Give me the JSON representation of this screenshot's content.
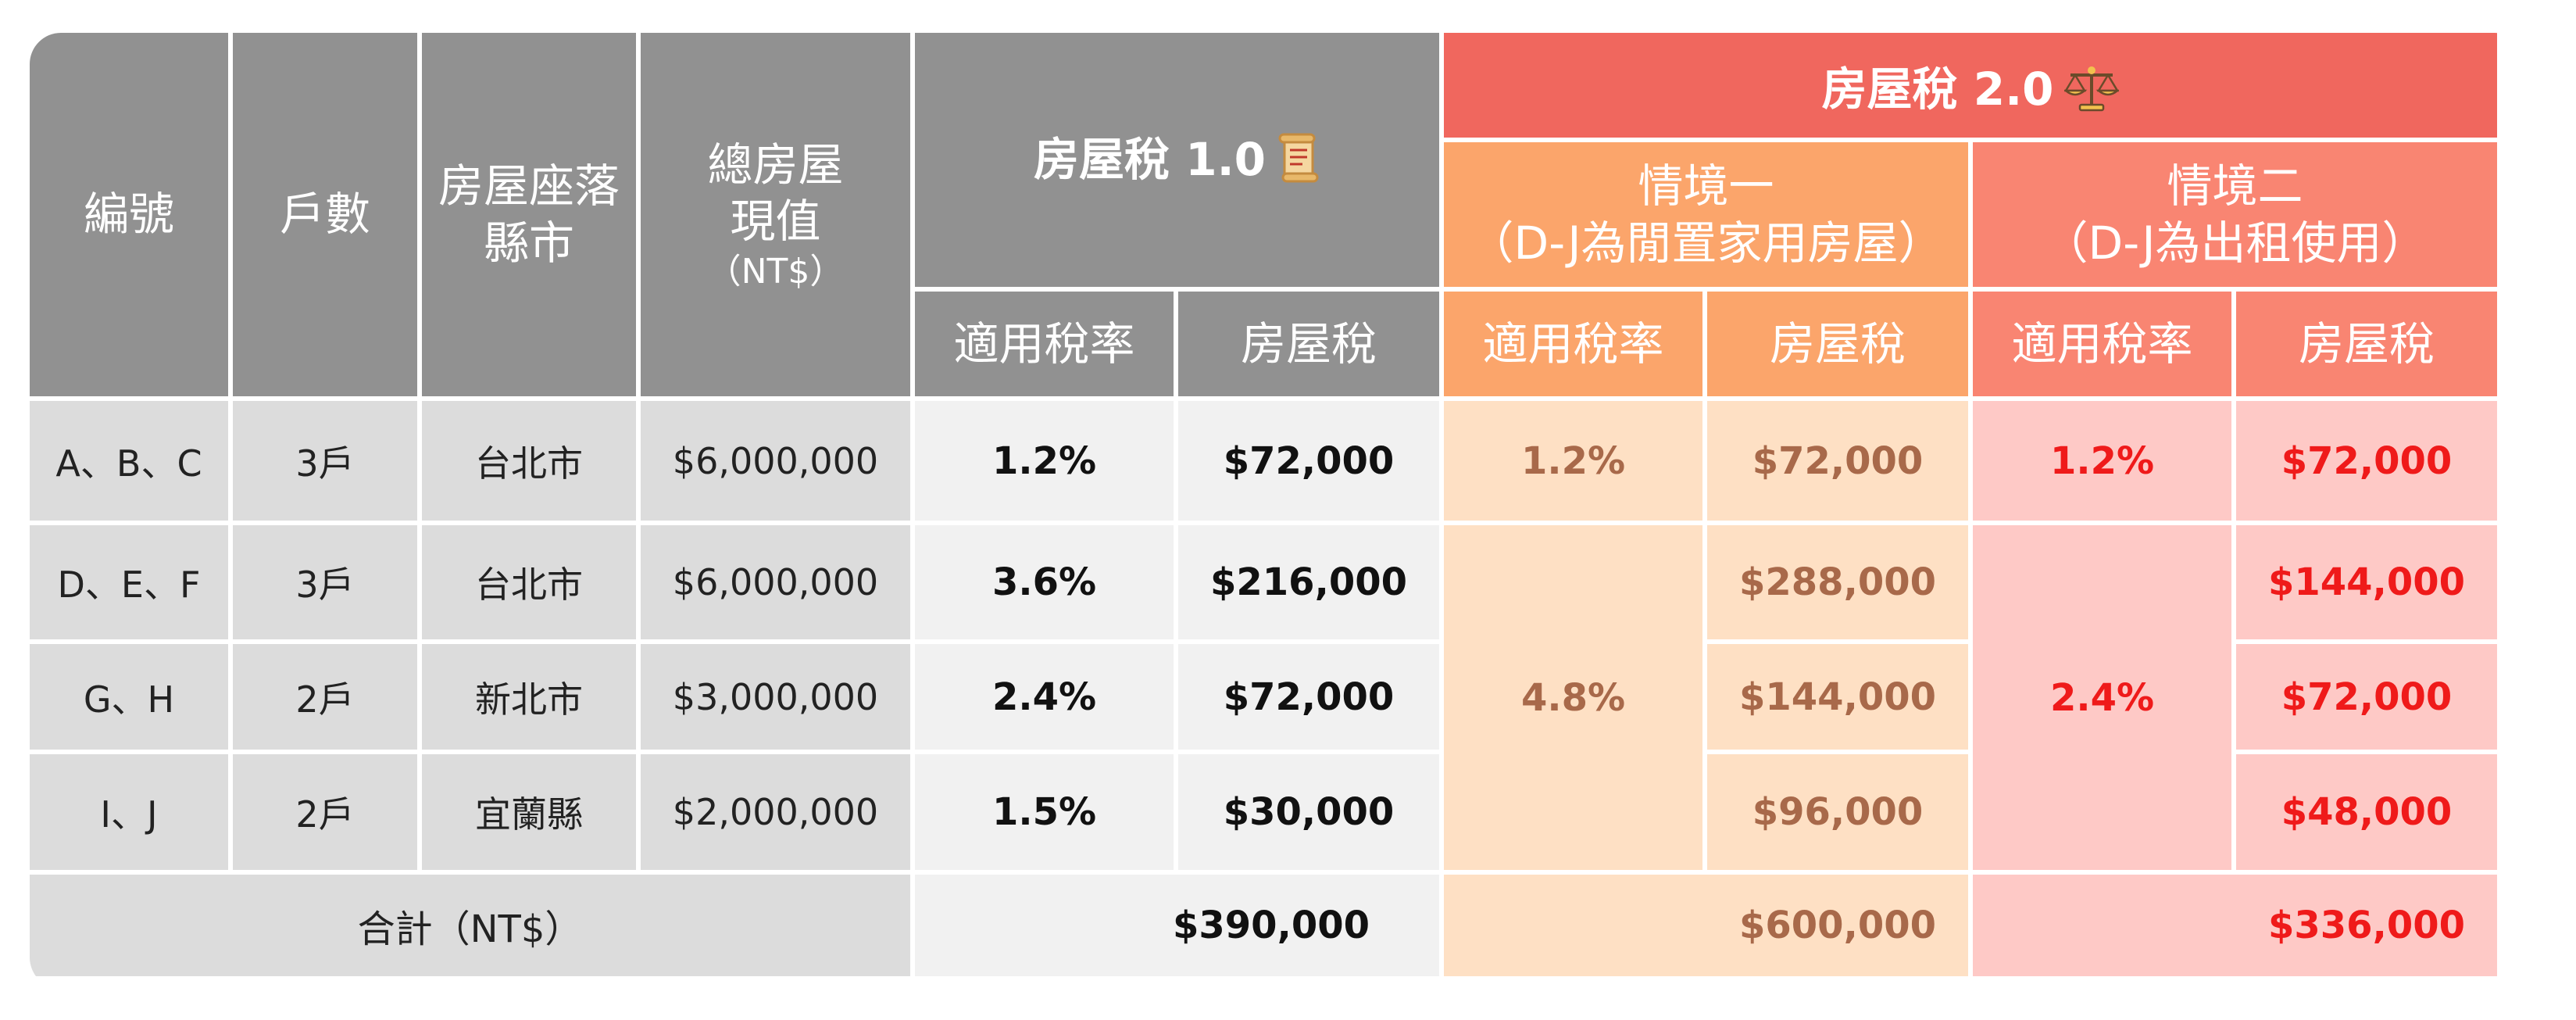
{
  "header": {
    "id": "編號",
    "units": "戶數",
    "location_line1": "房屋座落",
    "location_line2": "縣市",
    "value_line1": "總房屋",
    "value_line2": "現值",
    "value_unit": "（NT$）",
    "tax10_title": "房屋稅 1.0",
    "tax10_icon": "scroll-icon",
    "tax20_title": "房屋稅 2.0",
    "tax20_icon": "scales-icon",
    "scenario1_line1": "情境一",
    "scenario1_line2": "（D-J為閒置家用房屋）",
    "scenario2_line1": "情境二",
    "scenario2_line2": "（D-J為出租使用）",
    "rate_label": "適用稅率",
    "tax_label": "房屋稅"
  },
  "rows": [
    {
      "id": "A、B、C",
      "units": "3戶",
      "city": "台北市",
      "value": "$6,000,000",
      "rate10": "1.2%",
      "tax10": "$72,000",
      "tax_s1": "$72,000",
      "tax_s2": "$72,000"
    },
    {
      "id": "D、E、F",
      "units": "3戶",
      "city": "台北市",
      "value": "$6,000,000",
      "rate10": "3.6%",
      "tax10": "$216,000",
      "tax_s1": "$288,000",
      "tax_s2": "$144,000"
    },
    {
      "id": "G、H",
      "units": "2戶",
      "city": "新北市",
      "value": "$3,000,000",
      "rate10": "2.4%",
      "tax10": "$72,000",
      "tax_s1": "$144,000",
      "tax_s2": "$72,000"
    },
    {
      "id": "I、J",
      "units": "2戶",
      "city": "宜蘭縣",
      "value": "$2,000,000",
      "rate10": "1.5%",
      "tax10": "$30,000",
      "tax_s1": "$96,000",
      "tax_s2": "$48,000"
    }
  ],
  "scenario1_rates": {
    "first": "1.2%",
    "rest": "4.8%"
  },
  "scenario2_rates": {
    "first": "1.2%",
    "rest": "2.4%"
  },
  "totals": {
    "label": "合計（NT$）",
    "tax10": "$390,000",
    "tax_s1": "$600,000",
    "tax_s2": "$336,000"
  },
  "colors": {
    "header_grey": "#919191",
    "tax20_header": "#f0675e",
    "scenario1_header": "#fba56b",
    "scenario2_header": "#f98572",
    "body_grey": "#dcdcdc",
    "body_light": "#f1f1f1",
    "body_peach": "#fee0c4",
    "body_pink": "#fec9c6",
    "scenario1_text": "#a8694a",
    "scenario2_text": "#ef1a1a"
  }
}
